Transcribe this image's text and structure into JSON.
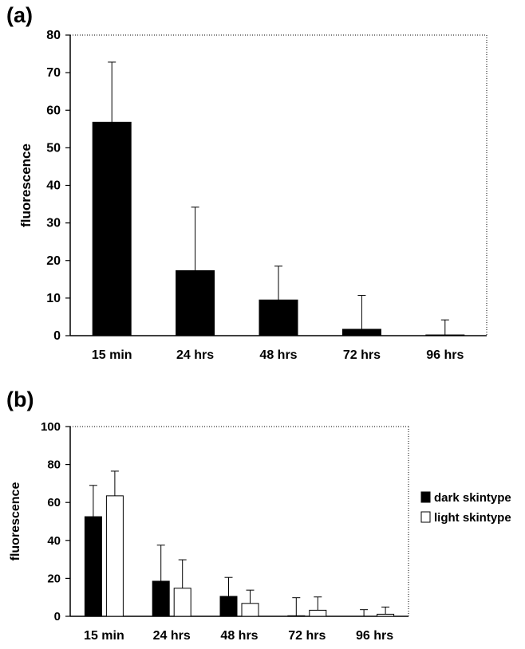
{
  "panels": {
    "a_label": "(a)",
    "b_label": "(b)"
  },
  "colors": {
    "dark": "#000000",
    "light": "#ffffff",
    "axis": "#000000"
  },
  "chart_data": [
    {
      "type": "bar",
      "panel": "(a)",
      "categories": [
        "15 min",
        "24 hrs",
        "48 hrs",
        "72 hrs",
        "96 hrs"
      ],
      "series": [
        {
          "values": [
            56.8,
            17.3,
            9.5,
            1.7,
            0.2
          ],
          "errors": [
            16.0,
            16.9,
            9.0,
            9.0,
            4.0
          ],
          "color": "#000000"
        }
      ],
      "ylabel": "fluorescence",
      "xlabel": "",
      "ylim": [
        0,
        80
      ],
      "yticks": [
        0,
        10,
        20,
        30,
        40,
        50,
        60,
        70,
        80
      ],
      "grid": false
    },
    {
      "type": "bar",
      "panel": "(b)",
      "categories": [
        "15 min",
        "24 hrs",
        "48 hrs",
        "72 hrs",
        "96 hrs"
      ],
      "series": [
        {
          "name": "dark skintype",
          "values": [
            52.5,
            18.5,
            10.5,
            0.3,
            0.0
          ],
          "errors": [
            16.5,
            19.0,
            10.0,
            9.5,
            3.5
          ],
          "color": "#000000"
        },
        {
          "name": "light skintype",
          "values": [
            63.5,
            14.8,
            6.8,
            3.2,
            1.1
          ],
          "errors": [
            13.0,
            15.0,
            7.0,
            7.0,
            3.8
          ],
          "color": "#ffffff"
        }
      ],
      "ylabel": "fluorescence",
      "xlabel": "",
      "ylim": [
        0,
        100
      ],
      "yticks": [
        0,
        20,
        40,
        60,
        80,
        100
      ],
      "legend": "right",
      "grid": false
    }
  ]
}
